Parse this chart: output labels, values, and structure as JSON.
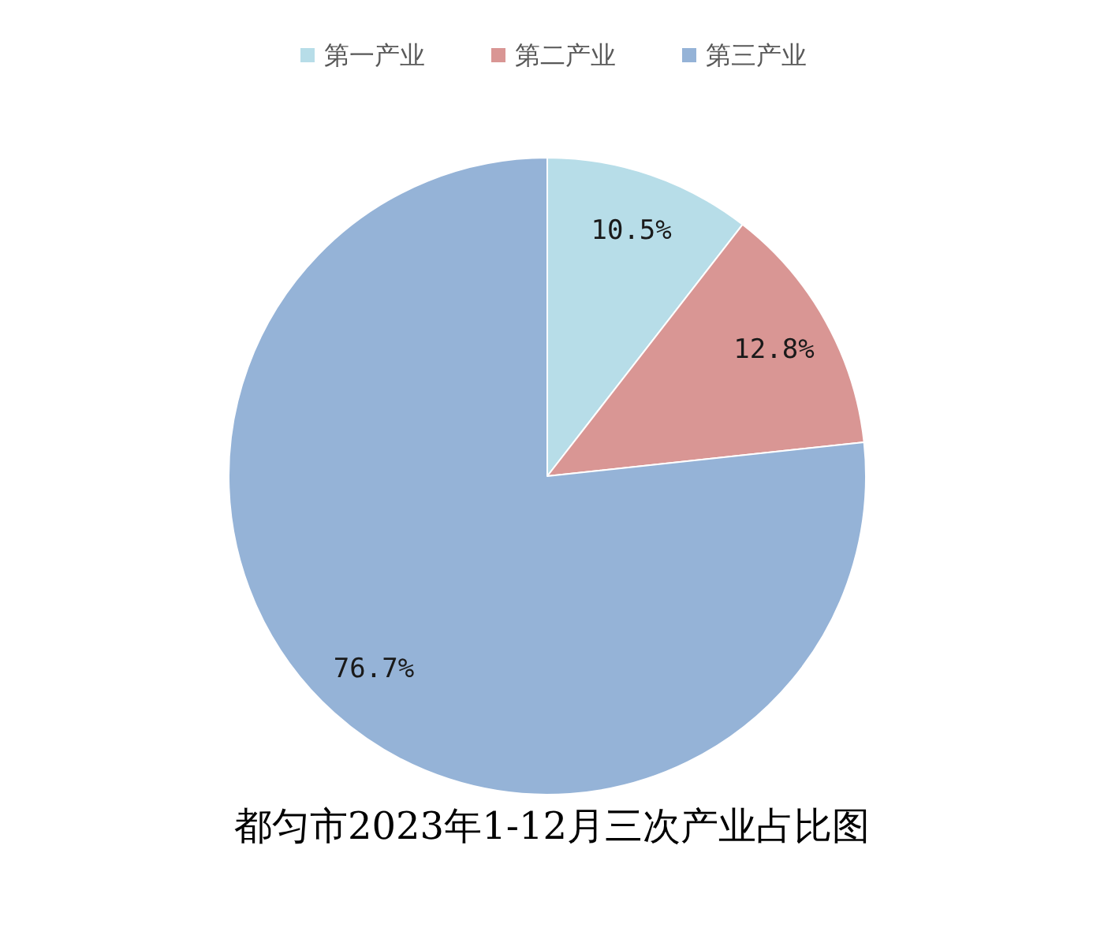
{
  "chart_data": {
    "type": "pie",
    "title": "都匀市2023年1-12月三次产业占比图",
    "categories": [
      "第一产业",
      "第二产业",
      "第三产业"
    ],
    "values": [
      10.5,
      12.8,
      76.7
    ],
    "colors": [
      "#b7dde8",
      "#d99694",
      "#95b3d7"
    ],
    "value_labels": [
      "10.5%",
      "12.8%",
      "76.7%"
    ],
    "legend": "top"
  }
}
